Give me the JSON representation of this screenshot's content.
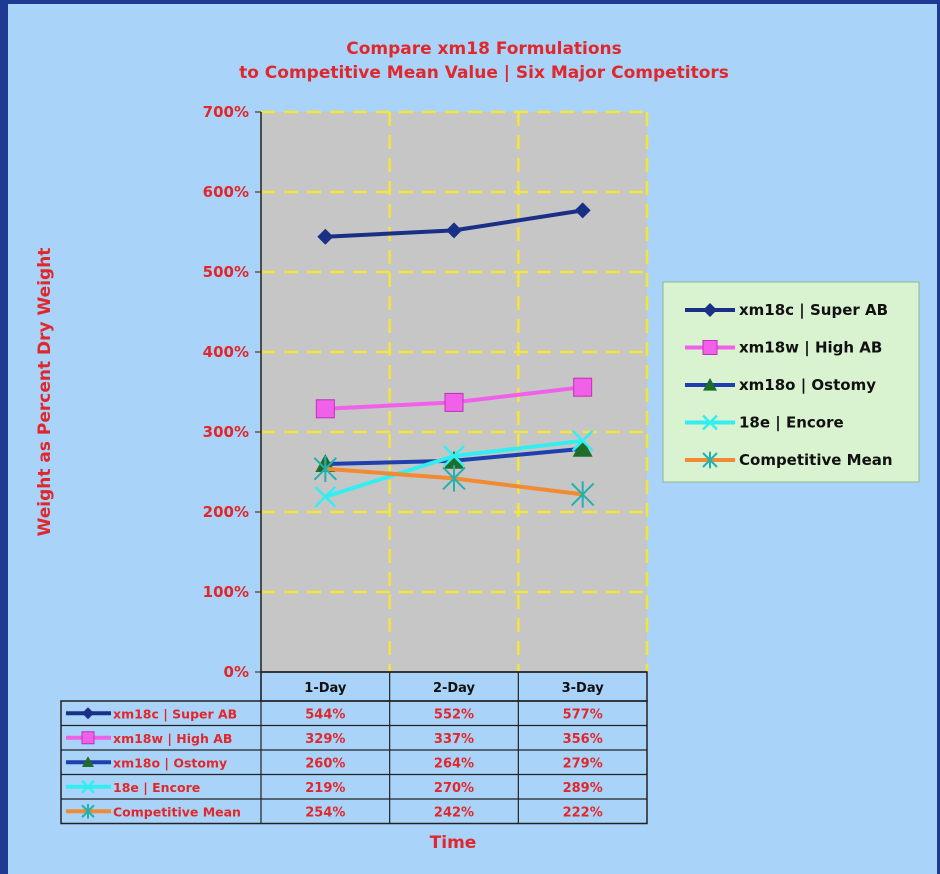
{
  "chart_data": {
    "type": "line",
    "title": [
      "Compare xm18 Formulations",
      "to Competitive Mean Value | Six Major Competitors"
    ],
    "xlabel": "Time",
    "ylabel": "Weight as Percent Dry Weight",
    "categories": [
      "1-Day",
      "2-Day",
      "3-Day"
    ],
    "ylim": [
      0,
      700
    ],
    "yticks": [
      "0%",
      "100%",
      "200%",
      "300%",
      "400%",
      "500%",
      "600%",
      "700%"
    ],
    "grid": true,
    "legend_position": "right",
    "series": [
      {
        "name": "xm18c | Super AB",
        "values": [
          544,
          552,
          577
        ],
        "labels": [
          "544%",
          "552%",
          "577%"
        ],
        "color": "#1a2f86",
        "marker": "diamond"
      },
      {
        "name": "xm18w | High AB",
        "values": [
          329,
          337,
          356
        ],
        "labels": [
          "329%",
          "337%",
          "356%"
        ],
        "color": "#f060e8",
        "marker": "square"
      },
      {
        "name": "xm18o | Ostomy",
        "values": [
          260,
          264,
          279
        ],
        "labels": [
          "260%",
          "264%",
          "279%"
        ],
        "color": "#1f3fae",
        "marker": "triangle"
      },
      {
        "name": "18e | Encore",
        "values": [
          219,
          270,
          289
        ],
        "labels": [
          "219%",
          "270%",
          "289%"
        ],
        "color": "#33eef0",
        "marker": "x"
      },
      {
        "name": "Competitive Mean",
        "values": [
          254,
          242,
          222
        ],
        "labels": [
          "254%",
          "242%",
          "222%"
        ],
        "color": "#f18a32",
        "marker": "star"
      }
    ],
    "colors": {
      "plot_bg": "#c6c6c6",
      "grid": "#f5e43a",
      "text": "#e0282c",
      "page_bg": "#a9d3f8",
      "legend_bg": "#d9f2d0"
    }
  }
}
